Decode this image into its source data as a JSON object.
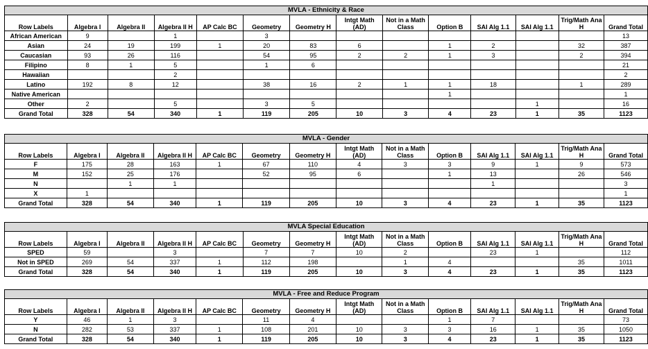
{
  "columns": [
    "Row Labels",
    "Algebra I",
    "Algebra II",
    "Algebra II H",
    "AP Calc BC",
    "Geometry",
    "Geometry H",
    "Intgt Math (AD)",
    "Not in a Math Class",
    "Option B",
    "SAI Alg 1.1",
    "SAI Alg 1.1",
    "Trig/Math Ana H",
    "Grand Total"
  ],
  "tables": [
    {
      "title": "MVLA - Ethnicity & Race",
      "rows": [
        [
          "African American",
          "9",
          "",
          "1",
          "",
          "3",
          "",
          "",
          "",
          "",
          "",
          "",
          "",
          "13"
        ],
        [
          "Asian",
          "24",
          "19",
          "199",
          "1",
          "20",
          "83",
          "6",
          "",
          "1",
          "2",
          "",
          "32",
          "387"
        ],
        [
          "Caucasian",
          "93",
          "26",
          "116",
          "",
          "54",
          "95",
          "2",
          "2",
          "1",
          "3",
          "",
          "2",
          "394"
        ],
        [
          "Filipino",
          "8",
          "1",
          "5",
          "",
          "1",
          "6",
          "",
          "",
          "",
          "",
          "",
          "",
          "21"
        ],
        [
          "Hawaiian",
          "",
          "",
          "2",
          "",
          "",
          "",
          "",
          "",
          "",
          "",
          "",
          "",
          "2"
        ],
        [
          "Latino",
          "192",
          "8",
          "12",
          "",
          "38",
          "16",
          "2",
          "1",
          "1",
          "18",
          "",
          "1",
          "289"
        ],
        [
          "Native American",
          "",
          "",
          "",
          "",
          "",
          "",
          "",
          "",
          "1",
          "",
          "",
          "",
          "1"
        ],
        [
          "Other",
          "2",
          "",
          "5",
          "",
          "3",
          "5",
          "",
          "",
          "",
          "",
          "1",
          "",
          "16"
        ]
      ],
      "total": [
        "Grand Total",
        "328",
        "54",
        "340",
        "1",
        "119",
        "205",
        "10",
        "3",
        "4",
        "23",
        "1",
        "35",
        "1123"
      ]
    },
    {
      "title": "MVLA - Gender",
      "rows": [
        [
          "F",
          "175",
          "28",
          "163",
          "1",
          "67",
          "110",
          "4",
          "3",
          "3",
          "9",
          "1",
          "9",
          "573"
        ],
        [
          "M",
          "152",
          "25",
          "176",
          "",
          "52",
          "95",
          "6",
          "",
          "1",
          "13",
          "",
          "26",
          "546"
        ],
        [
          "N",
          "",
          "1",
          "1",
          "",
          "",
          "",
          "",
          "",
          "",
          "1",
          "",
          "",
          "3"
        ],
        [
          "X",
          "1",
          "",
          "",
          "",
          "",
          "",
          "",
          "",
          "",
          "",
          "",
          "",
          "1"
        ]
      ],
      "total": [
        "Grand Total",
        "328",
        "54",
        "340",
        "1",
        "119",
        "205",
        "10",
        "3",
        "4",
        "23",
        "1",
        "35",
        "1123"
      ]
    },
    {
      "title": "MVLA Special Education",
      "rows": [
        [
          "SPED",
          "59",
          "",
          "3",
          "",
          "7",
          "7",
          "10",
          "2",
          "",
          "23",
          "1",
          "",
          "112"
        ],
        [
          "Not in SPED",
          "269",
          "54",
          "337",
          "1",
          "112",
          "198",
          "",
          "1",
          "4",
          "",
          "",
          "35",
          "1011"
        ]
      ],
      "total": [
        "Grand Total",
        "328",
        "54",
        "340",
        "1",
        "119",
        "205",
        "10",
        "3",
        "4",
        "23",
        "1",
        "35",
        "1123"
      ]
    },
    {
      "title": "MVLA - Free and Reduce Program",
      "rows": [
        [
          "Y",
          "46",
          "1",
          "3",
          "",
          "11",
          "4",
          "",
          "",
          "1",
          "7",
          "",
          "",
          "73"
        ],
        [
          "N",
          "282",
          "53",
          "337",
          "1",
          "108",
          "201",
          "10",
          "3",
          "3",
          "16",
          "1",
          "35",
          "1050"
        ]
      ],
      "total": [
        "Grand Total",
        "328",
        "54",
        "340",
        "1",
        "119",
        "205",
        "10",
        "3",
        "4",
        "23",
        "1",
        "35",
        "1123"
      ]
    }
  ]
}
